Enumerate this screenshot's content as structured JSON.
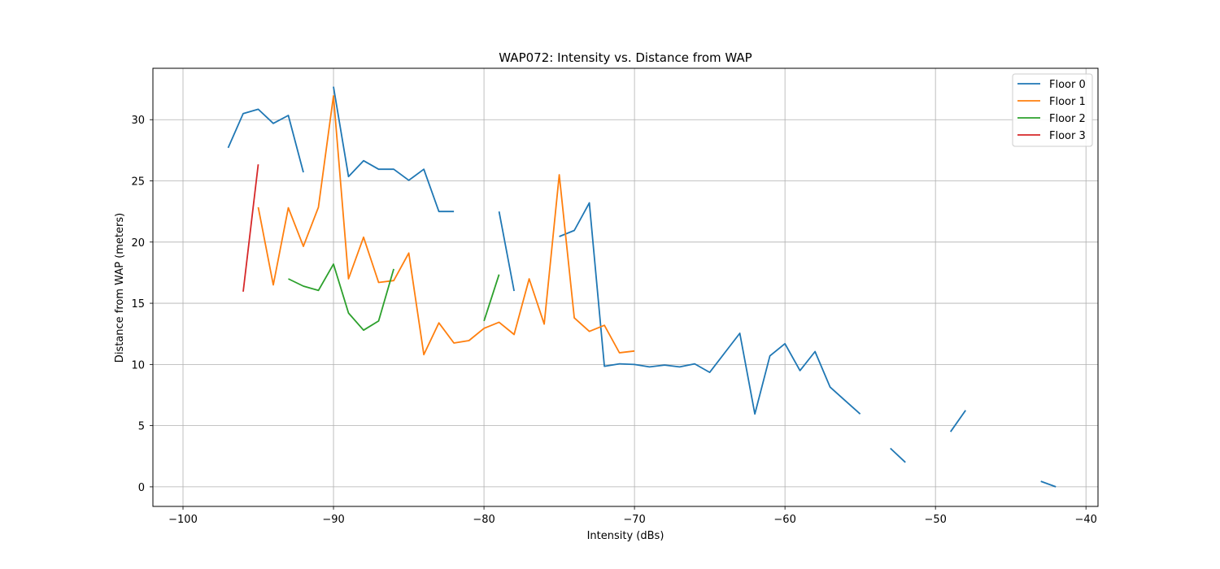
{
  "chart_data": {
    "type": "line",
    "title": "WAP072: Intensity vs. Distance from WAP",
    "xlabel": "Intensity (dBs)",
    "ylabel": "Distance from WAP (meters)",
    "xlim": [
      -102,
      -39.2
    ],
    "ylim": [
      -1.6,
      34.2
    ],
    "xticks": [
      -100,
      -90,
      -80,
      -70,
      -60,
      -50,
      -40
    ],
    "xtick_labels": [
      "−100",
      "−90",
      "−80",
      "−70",
      "−60",
      "−50",
      "−40"
    ],
    "yticks": [
      0,
      5,
      10,
      15,
      20,
      25,
      30
    ],
    "ytick_labels": [
      "0",
      "5",
      "10",
      "15",
      "20",
      "25",
      "30"
    ],
    "grid": true,
    "legend_position": "top-right",
    "series": [
      {
        "name": "Floor 0",
        "color": "#1f77b4",
        "segments": [
          [
            [
              -97,
              27.7
            ],
            [
              -96,
              30.5
            ],
            [
              -95,
              30.85
            ],
            [
              -94,
              29.7
            ],
            [
              -93,
              30.35
            ],
            [
              -92,
              25.7
            ]
          ],
          [
            [
              -90,
              32.7
            ],
            [
              -89,
              25.35
            ],
            [
              -88,
              26.65
            ],
            [
              -87,
              25.95
            ],
            [
              -86,
              25.95
            ],
            [
              -85,
              25.05
            ],
            [
              -84,
              25.95
            ],
            [
              -83,
              22.5
            ],
            [
              -82,
              22.5
            ]
          ],
          [
            [
              -79,
              22.5
            ],
            [
              -78,
              16.0
            ]
          ],
          [
            [
              -75,
              20.45
            ],
            [
              -74,
              20.95
            ],
            [
              -73,
              23.2
            ],
            [
              -72,
              9.85
            ],
            [
              -71,
              10.05
            ],
            [
              -70,
              10.0
            ],
            [
              -69,
              9.8
            ],
            [
              -68,
              9.95
            ],
            [
              -67,
              9.8
            ],
            [
              -66,
              10.05
            ],
            [
              -65,
              9.35
            ],
            [
              -64,
              10.95
            ],
            [
              -63,
              12.55
            ],
            [
              -62,
              5.95
            ],
            [
              -61,
              10.7
            ],
            [
              -60,
              11.7
            ],
            [
              -59,
              9.5
            ],
            [
              -58,
              11.05
            ],
            [
              -57,
              8.15
            ],
            [
              -56,
              7.05
            ],
            [
              -55,
              5.95
            ]
          ],
          [
            [
              -53,
              3.15
            ],
            [
              -52,
              2.0
            ]
          ],
          [
            [
              -49,
              4.5
            ],
            [
              -48,
              6.25
            ]
          ],
          [
            [
              -43,
              0.45
            ],
            [
              -42,
              0.0
            ]
          ]
        ]
      },
      {
        "name": "Floor 1",
        "color": "#ff7f0e",
        "segments": [
          [
            [
              -95,
              22.85
            ],
            [
              -94,
              16.5
            ],
            [
              -93,
              22.8
            ],
            [
              -92,
              19.65
            ],
            [
              -91,
              22.85
            ],
            [
              -90,
              31.95
            ],
            [
              -89,
              17.0
            ],
            [
              -88,
              20.4
            ],
            [
              -87,
              16.7
            ],
            [
              -86,
              16.85
            ],
            [
              -85,
              19.1
            ],
            [
              -84,
              10.8
            ],
            [
              -83,
              13.4
            ],
            [
              -82,
              11.75
            ],
            [
              -81,
              11.95
            ],
            [
              -80,
              12.95
            ],
            [
              -79,
              13.45
            ],
            [
              -78,
              12.45
            ],
            [
              -77,
              17.0
            ],
            [
              -76,
              13.3
            ],
            [
              -75,
              25.5
            ],
            [
              -74,
              13.8
            ],
            [
              -73,
              12.7
            ],
            [
              -72,
              13.2
            ],
            [
              -71,
              10.95
            ],
            [
              -70,
              11.1
            ]
          ]
        ]
      },
      {
        "name": "Floor 2",
        "color": "#2ca02c",
        "segments": [
          [
            [
              -93,
              17.0
            ],
            [
              -92,
              16.4
            ],
            [
              -91,
              16.05
            ],
            [
              -90,
              18.2
            ],
            [
              -89,
              14.2
            ],
            [
              -88,
              12.8
            ],
            [
              -87,
              13.55
            ],
            [
              -86,
              17.8
            ]
          ],
          [
            [
              -80,
              13.55
            ],
            [
              -79,
              17.35
            ]
          ]
        ]
      },
      {
        "name": "Floor 3",
        "color": "#d62728",
        "segments": [
          [
            [
              -96,
              15.95
            ],
            [
              -95,
              26.35
            ]
          ]
        ]
      }
    ]
  }
}
